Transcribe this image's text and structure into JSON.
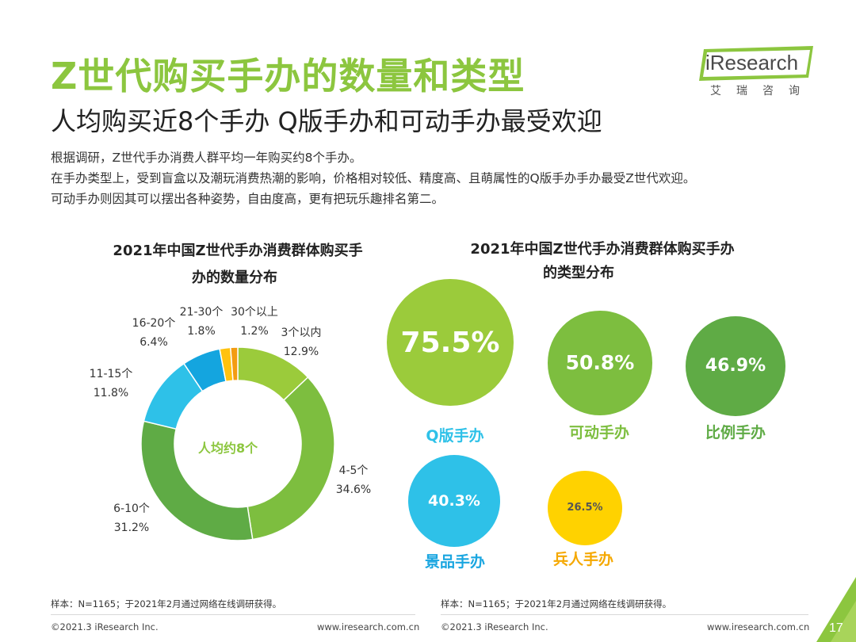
{
  "header": {
    "title": "Z世代购买手办的数量和类型",
    "subtitle": "人均购买近8个手办 Q版手办和可动手办最受欢迎",
    "desc": [
      "根据调研，Z世代手办消费人群平均一年购买约8个手办。",
      "在手办类型上，受到盲盒以及潮玩消费热潮的影响，价格相对较低、精度高、且萌属性的Q版手办手办最受Z世代欢迎。",
      "可动手办则因其可以摆出各种姿势，自由度高，更有把玩乐趣排名第二。"
    ]
  },
  "logo": {
    "brand": "iResearch",
    "sub": "艾瑞咨询"
  },
  "chart_data": [
    {
      "type": "pie",
      "style": "donut",
      "title": "2021年中国Z世代手办消费群体购买手办的数量分布",
      "title_lines": [
        "2021年中国Z世代手办消费群体购买手",
        "办的数量分布"
      ],
      "center_label": "人均约8个",
      "categories": [
        "3个以内",
        "4-5个",
        "6-10个",
        "11-15个",
        "16-20个",
        "21-30个",
        "30个以上"
      ],
      "values": [
        12.9,
        34.6,
        31.2,
        11.8,
        6.4,
        1.8,
        1.2
      ],
      "value_labels": [
        "12.9%",
        "34.6%",
        "31.2%",
        "11.8%",
        "6.4%",
        "1.8%",
        "1.2%"
      ],
      "colors": [
        "#9BCB3B",
        "#7DBE3F",
        "#5FAB45",
        "#2EC1E8",
        "#14A5DF",
        "#FFC20E",
        "#F39C12"
      ],
      "unit": "%"
    },
    {
      "type": "bubble",
      "title": "2021年中国Z世代手办消费群体购买手办的类型分布",
      "title_lines": [
        "2021年中国Z世代手办消费群体购买手办",
        "的类型分布"
      ],
      "categories": [
        "Q版手办",
        "可动手办",
        "比例手办",
        "景品手办",
        "兵人手办"
      ],
      "values": [
        75.5,
        50.8,
        46.9,
        40.3,
        26.5
      ],
      "value_labels": [
        "75.5%",
        "50.8%",
        "46.9%",
        "40.3%",
        "26.5%"
      ],
      "colors": [
        "#9BCB3B",
        "#7DBE3F",
        "#5FAB45",
        "#2EC1E8",
        "#FFD200"
      ],
      "label_colors": [
        "#2EC1E8",
        "#7DBE3F",
        "#5FAB45",
        "#1AA6E0",
        "#F5A800"
      ],
      "unit": "%"
    }
  ],
  "notes": {
    "left": "样本：N=1165；于2021年2月通过网络在线调研获得。",
    "right": "样本：N=1165；于2021年2月通过网络在线调研获得。"
  },
  "footer": {
    "left_copyright": "©2021.3 iResearch Inc.",
    "left_url": "www.iresearch.com.cn",
    "right_copyright": "©2021.3 iResearch Inc.",
    "right_url": "www.iresearch.com.cn",
    "page_number": "17"
  }
}
